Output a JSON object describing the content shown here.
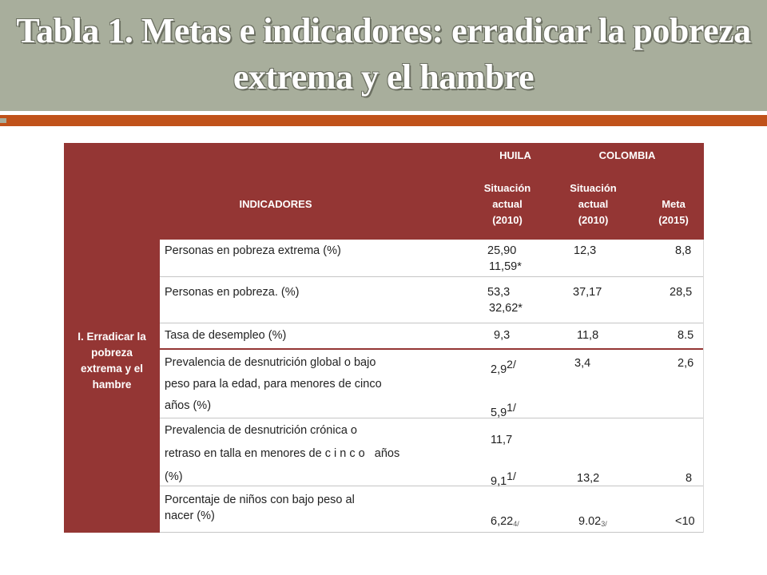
{
  "slide": {
    "title_line1": "Tabla 1. Metas e indicadores: erradicar la pobreza",
    "title_line2": "extrema y el hambre"
  },
  "table": {
    "header": {
      "huila": "HUILA",
      "colombia": "COLOMBIA",
      "indicadores": "INDICADORES",
      "huila_col": [
        "Situación",
        "actual",
        "(2010)"
      ],
      "col_actual": [
        "Situación",
        "actual",
        "(2010)"
      ],
      "col_meta": [
        "Meta",
        "(2015)"
      ]
    },
    "goal_label": [
      "I. Erradicar la",
      "pobreza",
      "extrema y el",
      "hambre"
    ],
    "rows": [
      {
        "indicator": [
          "Personas en pobreza extrema (%)"
        ],
        "huila": [
          "25,90",
          "11,59*"
        ],
        "colombia_actual": "12,3",
        "colombia_meta": "8,8"
      },
      {
        "indicator": [
          "Personas en pobreza. (%)"
        ],
        "huila": [
          "53,3",
          "32,62*"
        ],
        "colombia_actual": "37,17",
        "colombia_meta": "28,5"
      },
      {
        "indicator": [
          "Tasa de desempleo  (%)"
        ],
        "huila": [
          "9,3"
        ],
        "colombia_actual": "11,8",
        "colombia_meta": "8.5"
      },
      {
        "indicator": [
          "Prevalencia de desnutrición global o bajo",
          "peso para la edad, para menores de cinco",
          "años (%)"
        ],
        "huila_a": "2,9",
        "huila_a_note": "2/",
        "huila_b": "5,9",
        "huila_b_note": "1/",
        "colombia_actual": "3,4",
        "colombia_meta": "2,6"
      },
      {
        "indicator": [
          "Prevalencia de desnutrición crónica o",
          "retraso en talla en menores de c i n c o   años",
          "(%)"
        ],
        "huila_a": "11,7",
        "huila_b": "9,1",
        "huila_b_note": "1/",
        "colombia_actual": "13,2",
        "colombia_meta": "8"
      },
      {
        "indicator": [
          "Porcentaje de niños con bajo peso al",
          "nacer (%)"
        ],
        "huila": "6,22",
        "huila_note": "4/",
        "colombia_actual": "9.02",
        "colombia_actual_note": "3/",
        "colombia_meta": "<10"
      }
    ]
  },
  "colors": {
    "header_bg": "#943634",
    "title_band": "#a8ae9c",
    "accent_rule": "#c0521a"
  }
}
